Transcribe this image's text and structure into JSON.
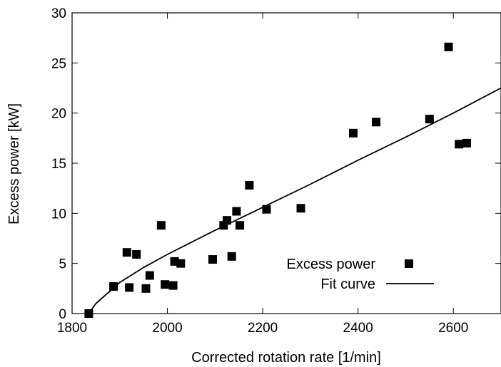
{
  "chart_data": {
    "type": "scatter",
    "xlabel": "Corrected rotation rate [1/min]",
    "ylabel": "Excess power [kW]",
    "xlim": [
      1800,
      2700
    ],
    "ylim": [
      0,
      30
    ],
    "xticks": [
      1800,
      2000,
      2200,
      2400,
      2600
    ],
    "yticks": [
      0,
      5,
      10,
      15,
      20,
      25,
      30
    ],
    "grid": false,
    "legend_position": "bottom-right",
    "series": [
      {
        "name": "Excess power",
        "marker": "filled-square",
        "color": "#000000",
        "points": [
          [
            1835,
            0.0
          ],
          [
            1887,
            2.7
          ],
          [
            1915,
            6.1
          ],
          [
            1920,
            2.6
          ],
          [
            1935,
            5.9
          ],
          [
            1955,
            2.5
          ],
          [
            1963,
            3.8
          ],
          [
            1987,
            8.8
          ],
          [
            1995,
            2.9
          ],
          [
            2012,
            2.8
          ],
          [
            2015,
            5.2
          ],
          [
            2028,
            5.0
          ],
          [
            2095,
            5.4
          ],
          [
            2118,
            8.8
          ],
          [
            2125,
            9.3
          ],
          [
            2135,
            5.7
          ],
          [
            2145,
            10.2
          ],
          [
            2152,
            8.8
          ],
          [
            2172,
            12.8
          ],
          [
            2208,
            10.4
          ],
          [
            2280,
            10.5
          ],
          [
            2390,
            18.0
          ],
          [
            2438,
            19.1
          ],
          [
            2550,
            19.4
          ],
          [
            2590,
            26.6
          ],
          [
            2612,
            16.9
          ],
          [
            2628,
            17.0
          ]
        ]
      },
      {
        "name": "Fit curve",
        "style": "line",
        "color": "#000000",
        "points": [
          [
            1835,
            0.0
          ],
          [
            1850,
            1.0
          ],
          [
            1900,
            3.1
          ],
          [
            1950,
            4.6
          ],
          [
            2000,
            5.9
          ],
          [
            2100,
            8.3
          ],
          [
            2200,
            10.6
          ],
          [
            2300,
            12.9
          ],
          [
            2400,
            15.3
          ],
          [
            2500,
            17.6
          ],
          [
            2600,
            20.0
          ],
          [
            2700,
            22.5
          ]
        ]
      }
    ]
  }
}
